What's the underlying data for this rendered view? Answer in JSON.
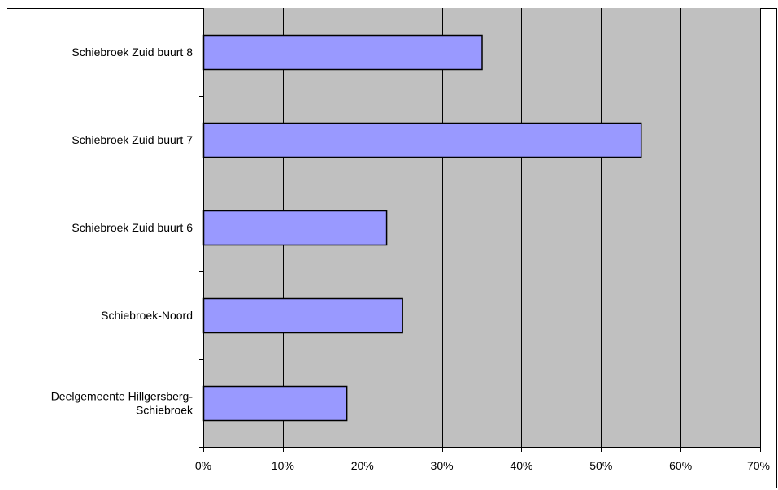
{
  "chart_data": {
    "type": "bar",
    "orientation": "horizontal",
    "title": "",
    "xlabel": "",
    "ylabel": "",
    "categories": [
      [
        "Schiebroek Zuid buurt 8"
      ],
      [
        "Schiebroek Zuid buurt 7"
      ],
      [
        "Schiebroek Zuid buurt 6"
      ],
      [
        "Schiebroek-Noord"
      ],
      [
        "Deelgemeente Hillgersberg-",
        "Schiebroek"
      ]
    ],
    "values": [
      35,
      55,
      23,
      25,
      18
    ],
    "xlim": [
      0,
      70
    ],
    "xticks": [
      0,
      10,
      20,
      30,
      40,
      50,
      60,
      70
    ],
    "xtick_labels": [
      "0%",
      "10%",
      "20%",
      "30%",
      "40%",
      "50%",
      "60%",
      "70%"
    ],
    "grid": "vertical",
    "legend": "none",
    "colors": {
      "bar_fill": "#9999ff",
      "bar_stroke": "#000000",
      "plot_background": "#c0c0c0",
      "gridline": "#000000",
      "outer_background": "#ffffff",
      "outer_border": "#000000"
    }
  }
}
